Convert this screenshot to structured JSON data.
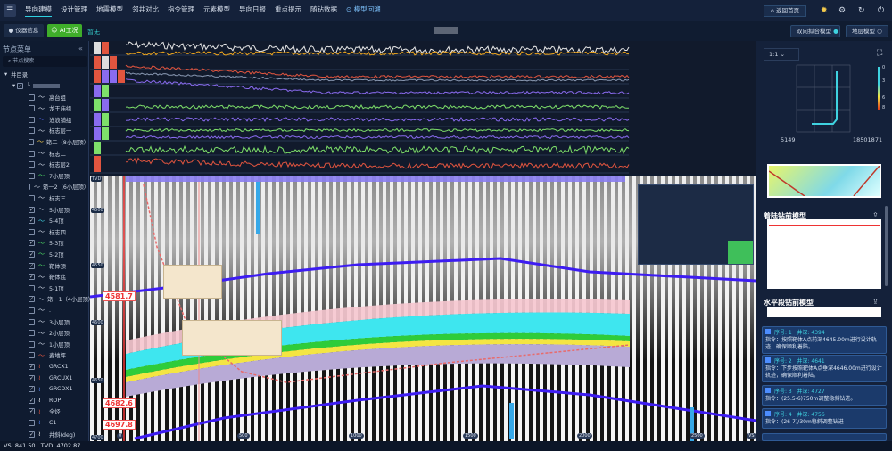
{
  "nav": {
    "items": [
      "导向建模",
      "设计管理",
      "地震模型",
      "邻井对比",
      "指令管理",
      "元素模型",
      "导向日报",
      "重点提示",
      "随钻数据"
    ],
    "play_item": "模型回溯",
    "home": "返回首页"
  },
  "toolbar": {
    "device_info": "仪器信息",
    "ai_label": "AI工况",
    "ai_status": "暂无",
    "mode_buttons": [
      {
        "label": "双向拟合模型",
        "checked": true
      },
      {
        "label": "地层模型",
        "checked": false
      }
    ]
  },
  "sidebar": {
    "title": "节点菜单",
    "search_placeholder": "节点搜索",
    "root": "井目录",
    "items": [
      {
        "label": "高台组",
        "checked": false,
        "color": "#cfd8e6"
      },
      {
        "label": "龙王庙组",
        "checked": false,
        "color": "#cfd8e6"
      },
      {
        "label": "沧浪铺组",
        "checked": false,
        "color": "#5b6cff"
      },
      {
        "label": "标志层一",
        "checked": false,
        "color": "#cfd8e6"
      },
      {
        "label": "筇二（8小层顶）",
        "checked": false,
        "color": "#f2c94c"
      },
      {
        "label": "标志二",
        "checked": false,
        "color": "#cfd8e6"
      },
      {
        "label": "标志层2",
        "checked": false,
        "color": "#cfd8e6"
      },
      {
        "label": "7小层顶",
        "checked": false,
        "color": "#4cd964"
      },
      {
        "label": "筇一2（6小层顶）",
        "checked": false,
        "color": "#cfd8e6"
      },
      {
        "label": "标志三",
        "checked": false,
        "color": "#cfd8e6"
      },
      {
        "label": "5小层顶",
        "checked": true,
        "color": "#cfd8e6"
      },
      {
        "label": "5-4顶",
        "checked": true,
        "color": "#3fd2e0"
      },
      {
        "label": "标志四",
        "checked": false,
        "color": "#cfd8e6"
      },
      {
        "label": "5-3顶",
        "checked": true,
        "color": "#4cd964"
      },
      {
        "label": "5-2顶",
        "checked": true,
        "color": "#4cd964"
      },
      {
        "label": "靶体顶",
        "checked": true,
        "color": "#4cd964"
      },
      {
        "label": "靶体底",
        "checked": true,
        "color": "#cfd8e6"
      },
      {
        "label": "5-1顶",
        "checked": false,
        "color": "#cfd8e6"
      },
      {
        "label": "筇一1（4小层顶）",
        "checked": true,
        "color": "#cfd8e6"
      },
      {
        "label": ".",
        "checked": false,
        "color": "#cfd8e6"
      },
      {
        "label": "3小层顶",
        "checked": false,
        "color": "#cfd8e6"
      },
      {
        "label": "2小层顶",
        "checked": false,
        "color": "#cfd8e6"
      },
      {
        "label": "1小层顶",
        "checked": false,
        "color": "#cfd8e6"
      },
      {
        "label": "麦地坪",
        "checked": false,
        "color": "#e2553f"
      },
      {
        "label": "GRCX1",
        "checked": true,
        "color": "#e2553f",
        "curve": true
      },
      {
        "label": "GRCUX1",
        "checked": true,
        "color": "#e2553f",
        "curve": true
      },
      {
        "label": "GRCDX1",
        "checked": true,
        "color": "#5b8cff",
        "curve": true
      },
      {
        "label": "ROP",
        "checked": true,
        "color": "#ffffff",
        "curve": true
      },
      {
        "label": "全烃",
        "checked": true,
        "color": "#e2553f",
        "curve": true
      },
      {
        "label": "C1",
        "checked": false,
        "color": "#5b8cff",
        "curve": true
      },
      {
        "label": "井斜(deg)",
        "checked": true,
        "color": "#ffffff",
        "curve": true
      }
    ]
  },
  "status": {
    "vs": "VS: 841.50",
    "tvd": "TVD: 4702.87"
  },
  "section": {
    "tvd_label": "TVD",
    "depth_ticks": [
      "4500",
      "4550",
      "4600",
      "4650",
      "4700"
    ],
    "x_ticks": [
      "0",
      "500",
      "1000",
      "1500",
      "2000",
      "2500"
    ],
    "vs_label": "VS",
    "red_tags": [
      "4581.7",
      "4682.6",
      "4697.8"
    ]
  },
  "right": {
    "scale": "1:1",
    "colorbar_ticks": [
      "0",
      "3",
      "6",
      "8"
    ],
    "axis_left": "5149",
    "axis_right": "18501871",
    "landing_title": "着陆钻前模型",
    "horizontal_title": "水平段钻前模型",
    "commands": [
      {
        "seq": "序号: 1",
        "depth": "井深: 4394",
        "text": "指令：按照靶体A点前深4645.00m进行设计轨迹，确保顺利着陆。"
      },
      {
        "seq": "序号: 2",
        "depth": "井深: 4641",
        "text": "指令：下步按照靶体A点垂深4646.00m进行设计轨迹，确保顺利着陆。"
      },
      {
        "seq": "序号: 3",
        "depth": "井深: 4727",
        "text": "指令：(25.5-6)750m调整稳斜钻进。"
      },
      {
        "seq": "序号: 4",
        "depth": "井深: 4756",
        "text": "指令：(26-7)/30m稳斜调整钻进"
      }
    ]
  },
  "colors": {
    "accent": "#2fd0e0",
    "ai_green": "#3fae2a",
    "nav_bg": "#14213a",
    "card_bg": "#1b3a6b"
  }
}
